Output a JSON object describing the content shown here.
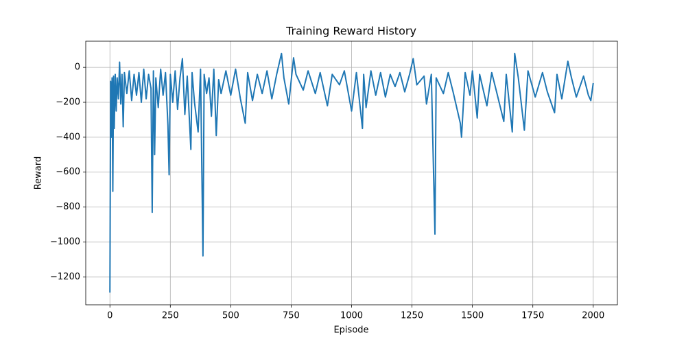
{
  "chart_data": {
    "type": "line",
    "title": "Training Reward History",
    "x_label": "Episode",
    "y_label": "Reward",
    "x": [
      0,
      3,
      6,
      9,
      12,
      15,
      18,
      22,
      26,
      30,
      35,
      40,
      45,
      50,
      55,
      60,
      70,
      80,
      90,
      100,
      110,
      120,
      130,
      140,
      150,
      160,
      170,
      175,
      180,
      185,
      190,
      200,
      210,
      220,
      230,
      240,
      245,
      250,
      260,
      270,
      280,
      290,
      300,
      310,
      320,
      335,
      340,
      350,
      365,
      375,
      385,
      390,
      400,
      410,
      420,
      430,
      440,
      450,
      460,
      480,
      500,
      520,
      540,
      560,
      570,
      590,
      610,
      630,
      650,
      670,
      690,
      710,
      720,
      740,
      760,
      770,
      800,
      820,
      850,
      870,
      900,
      920,
      950,
      970,
      1000,
      1020,
      1045,
      1050,
      1060,
      1080,
      1100,
      1120,
      1140,
      1160,
      1180,
      1200,
      1220,
      1240,
      1255,
      1270,
      1300,
      1310,
      1330,
      1345,
      1350,
      1380,
      1400,
      1420,
      1450,
      1455,
      1470,
      1490,
      1500,
      1520,
      1530,
      1560,
      1580,
      1600,
      1630,
      1640,
      1665,
      1675,
      1690,
      1715,
      1730,
      1760,
      1790,
      1810,
      1840,
      1850,
      1870,
      1895,
      1910,
      1930,
      1960,
      1980,
      1990,
      2000
    ],
    "series": [
      {
        "name": "Reward",
        "color": "#1f77b4",
        "values": [
          -1290,
          -80,
          -400,
          -60,
          -710,
          -50,
          -350,
          -40,
          -250,
          -60,
          -180,
          30,
          -210,
          -40,
          -340,
          -30,
          -150,
          -20,
          -190,
          -40,
          -160,
          -30,
          -200,
          -10,
          -180,
          -40,
          -120,
          -830,
          -20,
          -500,
          -60,
          -230,
          -10,
          -160,
          -30,
          -330,
          -615,
          -40,
          -200,
          -20,
          -240,
          -60,
          50,
          -270,
          -50,
          -470,
          -30,
          -200,
          -370,
          -10,
          -1080,
          -40,
          -150,
          -60,
          -280,
          -10,
          -390,
          -70,
          -150,
          -20,
          -160,
          -10,
          -180,
          -320,
          -30,
          -190,
          -40,
          -150,
          -20,
          -180,
          -40,
          80,
          -60,
          -210,
          55,
          -40,
          -130,
          -20,
          -150,
          -30,
          -220,
          -40,
          -100,
          -20,
          -250,
          -30,
          -350,
          -40,
          -230,
          -20,
          -160,
          -30,
          -170,
          -40,
          -110,
          -30,
          -140,
          -40,
          50,
          -100,
          -50,
          -210,
          -40,
          -955,
          -60,
          -150,
          -30,
          -140,
          -320,
          -400,
          -30,
          -160,
          -20,
          -290,
          -40,
          -220,
          -30,
          -140,
          -310,
          -40,
          -370,
          80,
          -60,
          -360,
          -20,
          -170,
          -30,
          -140,
          -260,
          -40,
          -180,
          35,
          -60,
          -170,
          -50,
          -160,
          -190,
          -90
        ]
      }
    ],
    "xlim": [
      -100,
      2100
    ],
    "ylim": [
      -1360,
      150
    ],
    "xticks": [
      0,
      250,
      500,
      750,
      1000,
      1250,
      1500,
      1750,
      2000
    ],
    "yticks": [
      {
        "value": -1200,
        "label": "−1200"
      },
      {
        "value": -1000,
        "label": "−1000"
      },
      {
        "value": -800,
        "label": "−800"
      },
      {
        "value": -600,
        "label": "−600"
      },
      {
        "value": -400,
        "label": "−400"
      },
      {
        "value": -200,
        "label": "−200"
      },
      0
    ],
    "grid": true
  }
}
